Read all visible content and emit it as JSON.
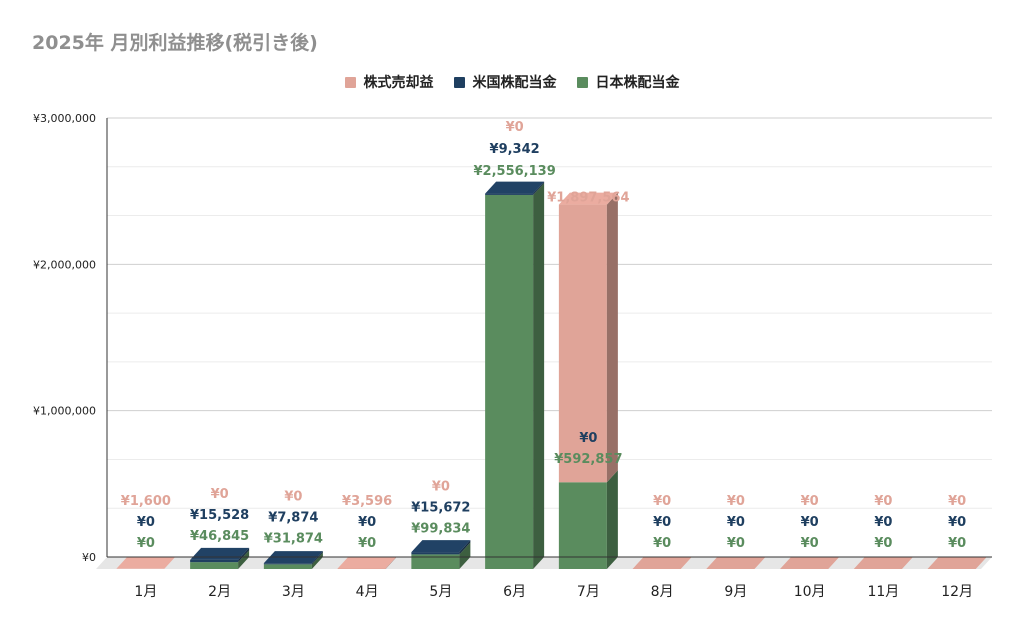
{
  "title": "2025年 月別利益推移(税引き後)",
  "colors": {
    "stock_sale": "#e0a498",
    "us_dividend": "#1f3f60",
    "jp_dividend": "#5a8c5e",
    "grid": "#dddddd",
    "axis": "#333333"
  },
  "chart_data": {
    "type": "bar",
    "stacked": true,
    "three_d": true,
    "title": "2025年 月別利益推移(税引き後)",
    "legend_position": "top-center",
    "grid": true,
    "categories": [
      "1月",
      "2月",
      "3月",
      "4月",
      "5月",
      "6月",
      "7月",
      "8月",
      "9月",
      "10月",
      "11月",
      "12月"
    ],
    "ylim": [
      0,
      3000000
    ],
    "yticks": [
      0,
      1000000,
      2000000,
      3000000
    ],
    "ytick_labels": [
      "¥0",
      "¥1,000,000",
      "¥2,000,000",
      "¥3,000,000"
    ],
    "series": [
      {
        "name": "株式売却益",
        "color": "#e0a498",
        "values": [
          1600,
          0,
          0,
          3596,
          0,
          0,
          1897564,
          0,
          0,
          0,
          0,
          0
        ],
        "labels": [
          "¥1,600",
          "¥0",
          "¥0",
          "¥3,596",
          "¥0",
          "¥0",
          "¥1,897,564",
          "¥0",
          "¥0",
          "¥0",
          "¥0",
          "¥0"
        ]
      },
      {
        "name": "米国株配当金",
        "color": "#1f3f60",
        "values": [
          0,
          15528,
          7874,
          0,
          15672,
          9342,
          0,
          0,
          0,
          0,
          0,
          0
        ],
        "labels": [
          "¥0",
          "¥15,528",
          "¥7,874",
          "¥0",
          "¥15,672",
          "¥9,342",
          "¥0",
          "¥0",
          "¥0",
          "¥0",
          "¥0",
          "¥0"
        ]
      },
      {
        "name": "日本株配当金",
        "color": "#5a8c5e",
        "values": [
          0,
          46845,
          31874,
          0,
          99834,
          2556139,
          592857,
          0,
          0,
          0,
          0,
          0
        ],
        "labels": [
          "¥0",
          "¥46,845",
          "¥31,874",
          "¥0",
          "¥99,834",
          "¥2,556,139",
          "¥592,857",
          "¥0",
          "¥0",
          "¥0",
          "¥0",
          "¥0"
        ]
      }
    ]
  }
}
